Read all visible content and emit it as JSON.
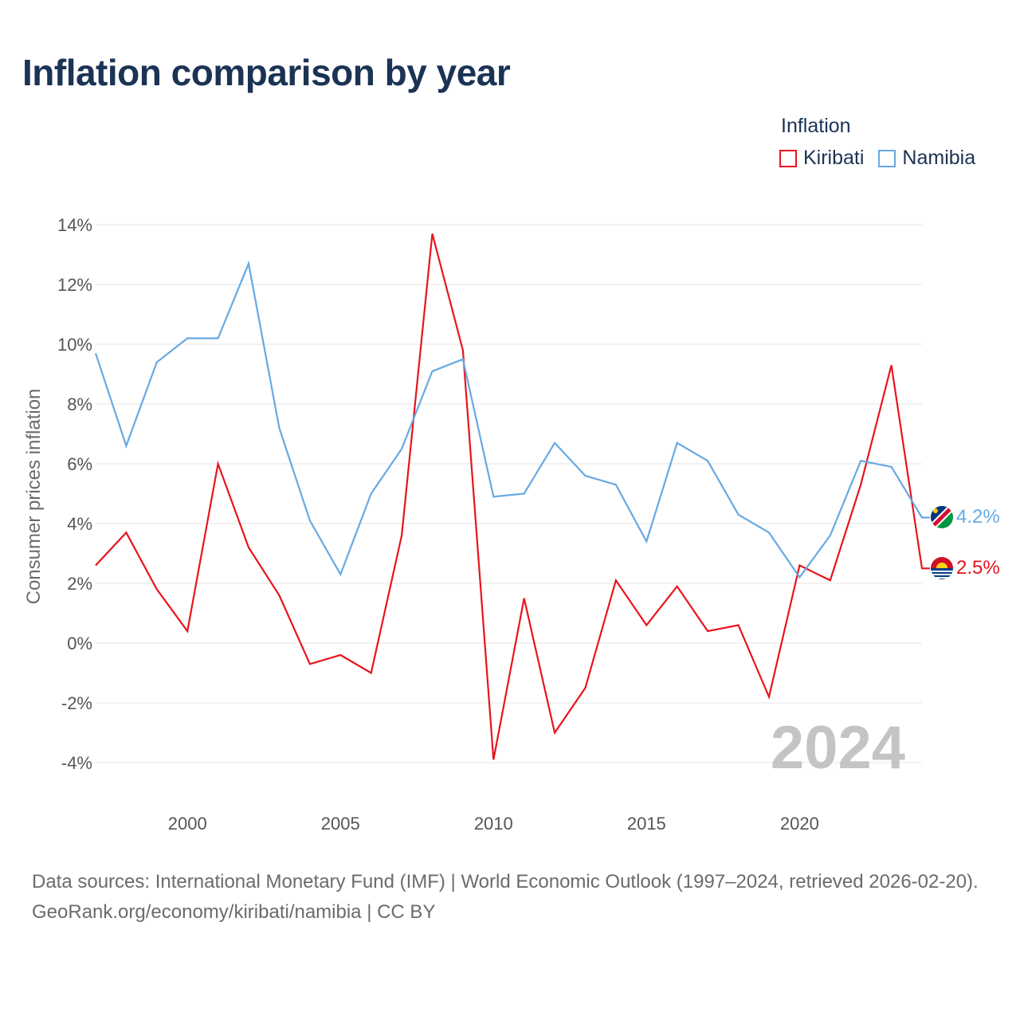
{
  "title": "Inflation comparison by year",
  "legend": {
    "title": "Inflation",
    "items": [
      {
        "label": "Kiribati",
        "color": "#e8141c"
      },
      {
        "label": "Namibia",
        "color": "#66a9e3"
      }
    ]
  },
  "footer": {
    "source": "Data sources: International Monetary Fund (IMF) | World Economic Outlook (1997–2024, retrieved 2026-02-20).",
    "credit": "GeoRank.org/economy/kiribati/namibia | CC BY"
  },
  "chart_data": {
    "type": "line",
    "title": "Inflation comparison by year",
    "xlabel": "",
    "ylabel": "Consumer prices inflation",
    "xlim": [
      1997,
      2024
    ],
    "ylim": [
      -4,
      14
    ],
    "y_ticks": [
      -4,
      -2,
      0,
      2,
      4,
      6,
      8,
      10,
      12,
      14
    ],
    "y_tick_labels": [
      "-4%",
      "-2%",
      "0%",
      "2%",
      "4%",
      "6%",
      "8%",
      "10%",
      "12%",
      "14%"
    ],
    "x_ticks": [
      2000,
      2005,
      2010,
      2015,
      2020
    ],
    "x_tick_labels": [
      "2000",
      "2005",
      "2010",
      "2015",
      "2020"
    ],
    "watermark": "2024",
    "x": [
      1997,
      1998,
      1999,
      2000,
      2001,
      2002,
      2003,
      2004,
      2005,
      2006,
      2007,
      2008,
      2009,
      2010,
      2011,
      2012,
      2013,
      2014,
      2015,
      2016,
      2017,
      2018,
      2019,
      2020,
      2021,
      2022,
      2023,
      2024
    ],
    "series": [
      {
        "name": "Kiribati",
        "color": "#e8141c",
        "end_label": "2.5%",
        "values": [
          2.6,
          3.7,
          1.8,
          0.4,
          6.0,
          3.2,
          1.6,
          -0.7,
          -0.4,
          -1.0,
          3.6,
          13.7,
          9.8,
          -3.9,
          1.5,
          -3.0,
          -1.5,
          2.1,
          0.6,
          1.9,
          0.4,
          0.6,
          -1.8,
          2.6,
          2.1,
          5.3,
          9.3,
          2.5
        ]
      },
      {
        "name": "Namibia",
        "color": "#66a9e3",
        "end_label": "4.2%",
        "values": [
          9.7,
          6.6,
          9.4,
          10.2,
          10.2,
          12.7,
          7.2,
          4.1,
          2.3,
          5.0,
          6.5,
          9.1,
          9.5,
          4.9,
          5.0,
          6.7,
          5.6,
          5.3,
          3.4,
          6.7,
          6.1,
          4.3,
          3.7,
          2.2,
          3.6,
          6.1,
          5.9,
          4.2
        ]
      }
    ]
  }
}
